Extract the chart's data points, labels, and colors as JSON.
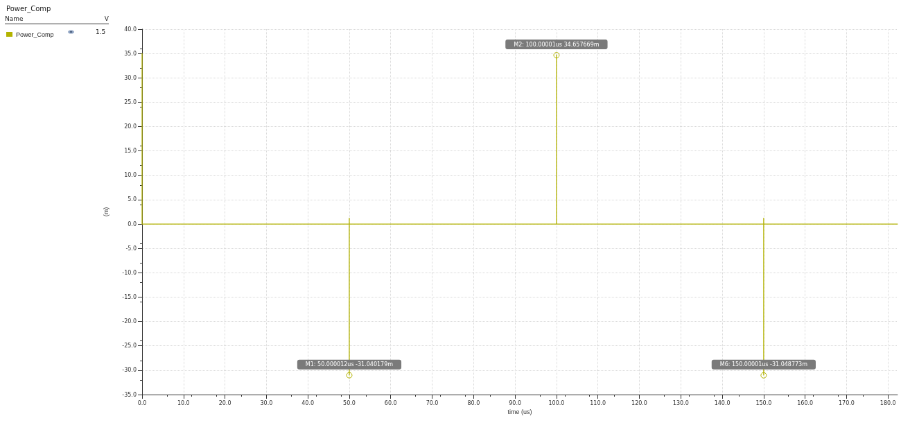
{
  "chart_data": {
    "type": "line",
    "title": "Power_Comp",
    "xlabel": "time (us)",
    "ylabel": "(m)",
    "legend_title": "Name",
    "x": [
      0,
      0,
      50,
      50,
      50,
      50,
      100,
      100,
      100,
      150,
      150,
      150,
      150,
      182.3
    ],
    "series": [
      {
        "name": "Power_Comp",
        "color": "#b3b300",
        "values": [
          35,
          0,
          0,
          1.2,
          -31,
          0,
          0,
          34.7,
          0,
          0,
          1.2,
          -31,
          0,
          0
        ]
      }
    ],
    "xlim": [
      0,
      182.3
    ],
    "xticks": [
      {
        "value": 0,
        "label": "0.0"
      },
      {
        "value": 10,
        "label": "10.0"
      },
      {
        "value": 20,
        "label": "20.0"
      },
      {
        "value": 30,
        "label": "30.0"
      },
      {
        "value": 40,
        "label": "40.0"
      },
      {
        "value": 50,
        "label": "50.0"
      },
      {
        "value": 60,
        "label": "60.0"
      },
      {
        "value": 70,
        "label": "70.0"
      },
      {
        "value": 80,
        "label": "80.0"
      },
      {
        "value": 90,
        "label": "90.0"
      },
      {
        "value": 100,
        "label": "100.0"
      },
      {
        "value": 110,
        "label": "110.0"
      },
      {
        "value": 120,
        "label": "120.0"
      },
      {
        "value": 130,
        "label": "130.0"
      },
      {
        "value": 140,
        "label": "140.0"
      },
      {
        "value": 150,
        "label": "150.0"
      },
      {
        "value": 160,
        "label": "160.0"
      },
      {
        "value": 170,
        "label": "170.0"
      },
      {
        "value": 180,
        "label": "180.0"
      }
    ],
    "ylim": [
      -35,
      40
    ],
    "yticks": [
      {
        "value": -35,
        "label": "-35.0"
      },
      {
        "value": -30,
        "label": "-30.0"
      },
      {
        "value": -25,
        "label": "-25.0"
      },
      {
        "value": -20,
        "label": "-20.0"
      },
      {
        "value": -15,
        "label": "-15.0"
      },
      {
        "value": -10,
        "label": "-10.0"
      },
      {
        "value": -5,
        "label": "-5.0"
      },
      {
        "value": 0,
        "label": "0.0"
      },
      {
        "value": 5,
        "label": "5.0"
      },
      {
        "value": 10,
        "label": "10.0"
      },
      {
        "value": 15,
        "label": "15.0"
      },
      {
        "value": 20,
        "label": "20.0"
      },
      {
        "value": 25,
        "label": "25.0"
      },
      {
        "value": 30,
        "label": "30.0"
      },
      {
        "value": 35,
        "label": "35.0"
      },
      {
        "value": 40,
        "label": "40.0"
      }
    ],
    "annotations": [
      "V",
      "1.5",
      {
        "text": "M1: 50.000012us -31.040179m",
        "x": 50,
        "y": -31.04
      },
      {
        "text": "M2: 100.00001us 34.657669m",
        "x": 100,
        "y": 34.66
      },
      {
        "text": "M6: 150.00001us -31.048773m",
        "x": 150,
        "y": -31.05
      }
    ],
    "grid": true,
    "legend": "top left",
    "marker": "none",
    "line_style": "solid"
  }
}
